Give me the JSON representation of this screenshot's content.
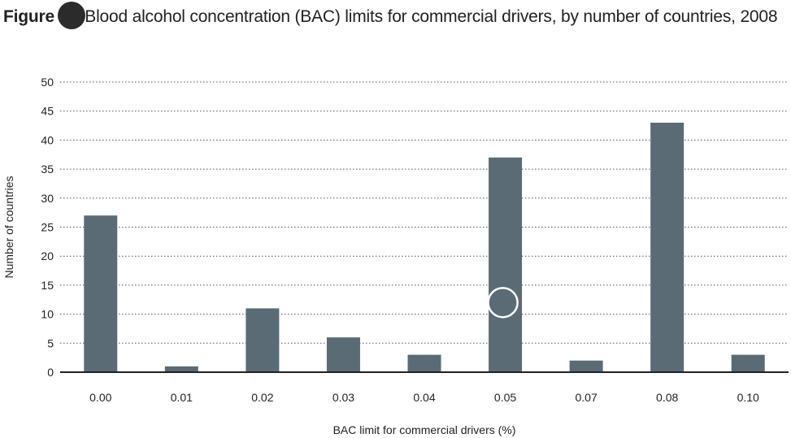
{
  "header": {
    "figure_word": "Figure",
    "title_text": "Blood alcohol concentration (BAC) limits for commercial drivers, by number of countries, 2008"
  },
  "chart_data": {
    "type": "bar",
    "title": "Blood alcohol concentration (BAC) limits for commercial drivers, by number of countries, 2008",
    "categories": [
      "0.00",
      "0.01",
      "0.02",
      "0.03",
      "0.04",
      "0.05",
      "0.07",
      "0.08",
      "0.10"
    ],
    "values": [
      27,
      1,
      11,
      6,
      3,
      37,
      2,
      43,
      3
    ],
    "xlabel": "BAC limit for commercial drivers (%)",
    "ylabel": "Number of countries",
    "ylim": [
      0,
      50
    ],
    "yticks": [
      0,
      5,
      10,
      15,
      20,
      25,
      30,
      35,
      40,
      45,
      50
    ],
    "grid": "dotted horizontal",
    "bar_color": "#5a6b75",
    "overlay_marker_color": "#ffffff"
  }
}
